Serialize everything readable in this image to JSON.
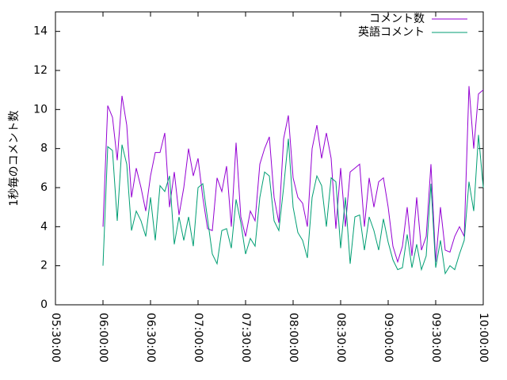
{
  "chart_data": {
    "type": "line",
    "y_label": "1秒毎のコメント数",
    "x": [
      "06:00:00",
      "06:03:00",
      "06:06:00",
      "06:09:00",
      "06:12:00",
      "06:15:00",
      "06:18:00",
      "06:21:00",
      "06:24:00",
      "06:27:00",
      "06:30:00",
      "06:33:00",
      "06:36:00",
      "06:39:00",
      "06:42:00",
      "06:45:00",
      "06:48:00",
      "06:51:00",
      "06:54:00",
      "06:57:00",
      "07:00:00",
      "07:03:00",
      "07:06:00",
      "07:09:00",
      "07:12:00",
      "07:15:00",
      "07:18:00",
      "07:21:00",
      "07:24:00",
      "07:27:00",
      "07:30:00",
      "07:33:00",
      "07:36:00",
      "07:39:00",
      "07:42:00",
      "07:45:00",
      "07:48:00",
      "07:51:00",
      "07:54:00",
      "07:57:00",
      "08:00:00",
      "08:03:00",
      "08:06:00",
      "08:09:00",
      "08:12:00",
      "08:15:00",
      "08:18:00",
      "08:21:00",
      "08:24:00",
      "08:27:00",
      "08:30:00",
      "08:33:00",
      "08:36:00",
      "08:39:00",
      "08:42:00",
      "08:45:00",
      "08:48:00",
      "08:51:00",
      "08:54:00",
      "08:57:00",
      "09:00:00",
      "09:03:00",
      "09:06:00",
      "09:09:00",
      "09:12:00",
      "09:15:00",
      "09:18:00",
      "09:21:00",
      "09:24:00",
      "09:27:00",
      "09:30:00",
      "09:33:00",
      "09:36:00",
      "09:39:00",
      "09:42:00",
      "09:45:00",
      "09:48:00",
      "09:51:00",
      "09:54:00",
      "09:57:00",
      "10:00:00"
    ],
    "series": [
      {
        "name": "コメント数",
        "color": "#9400d3",
        "values": [
          4,
          10.2,
          9.6,
          7.4,
          10.7,
          9.2,
          5.5,
          7,
          6,
          4.8,
          6.6,
          7.8,
          7.8,
          8.8,
          5,
          6.8,
          4.6,
          6,
          8,
          6.6,
          7.5,
          5.5,
          3.9,
          3.8,
          6.5,
          5.8,
          7.1,
          4,
          8.3,
          4.5,
          3.5,
          4.8,
          4.3,
          7.2,
          8,
          8.6,
          5.5,
          4.2,
          8.5,
          9.7,
          6.5,
          5.5,
          5.2,
          4,
          8,
          9.2,
          7.5,
          8.8,
          7.5,
          3.9,
          7,
          4,
          6.8,
          7,
          7.2,
          4,
          6.5,
          5,
          6.3,
          6.5,
          5,
          3,
          2.2,
          3,
          5,
          2.5,
          5.5,
          2.8,
          3.5,
          7.2,
          2.2,
          5,
          2.8,
          2.7,
          3.5,
          4,
          3.5,
          11.2,
          8,
          10.8,
          11
        ]
      },
      {
        "name": "英語コメント",
        "color": "#009e73",
        "values": [
          2,
          8.1,
          7.9,
          4.3,
          8.2,
          7.2,
          3.8,
          4.8,
          4.3,
          3.5,
          5.5,
          3.3,
          6.1,
          5.8,
          6.6,
          3.1,
          4.5,
          3.3,
          4.5,
          3,
          6,
          6.2,
          4.4,
          2.6,
          2.1,
          3.8,
          3.9,
          2.9,
          5.4,
          4.2,
          2.6,
          3.4,
          3,
          5.5,
          6.8,
          6.6,
          4.3,
          3.8,
          6,
          8.5,
          5,
          3.7,
          3.3,
          2.4,
          5.5,
          6.6,
          6.1,
          4,
          6.5,
          6.3,
          2.9,
          5.5,
          2.1,
          4.5,
          4.6,
          2.8,
          4.5,
          3.8,
          2.8,
          4.4,
          3.2,
          2.3,
          1.8,
          1.9,
          3.6,
          1.9,
          3.1,
          1.8,
          2.5,
          6.2,
          1.9,
          3.3,
          1.6,
          2,
          1.8,
          2.6,
          3.3,
          6.3,
          4.8,
          8.7,
          6
        ]
      }
    ],
    "xlim": [
      "05:30:00",
      "10:00:00"
    ],
    "xticks": [
      "05:30:00",
      "06:00:00",
      "06:30:00",
      "07:00:00",
      "07:30:00",
      "08:00:00",
      "08:30:00",
      "09:00:00",
      "09:30:00",
      "10:00:00"
    ],
    "ylim": [
      0,
      15
    ],
    "yticks": [
      0,
      2,
      4,
      6,
      8,
      10,
      12,
      14
    ],
    "grid": false,
    "legend": "top-right"
  }
}
